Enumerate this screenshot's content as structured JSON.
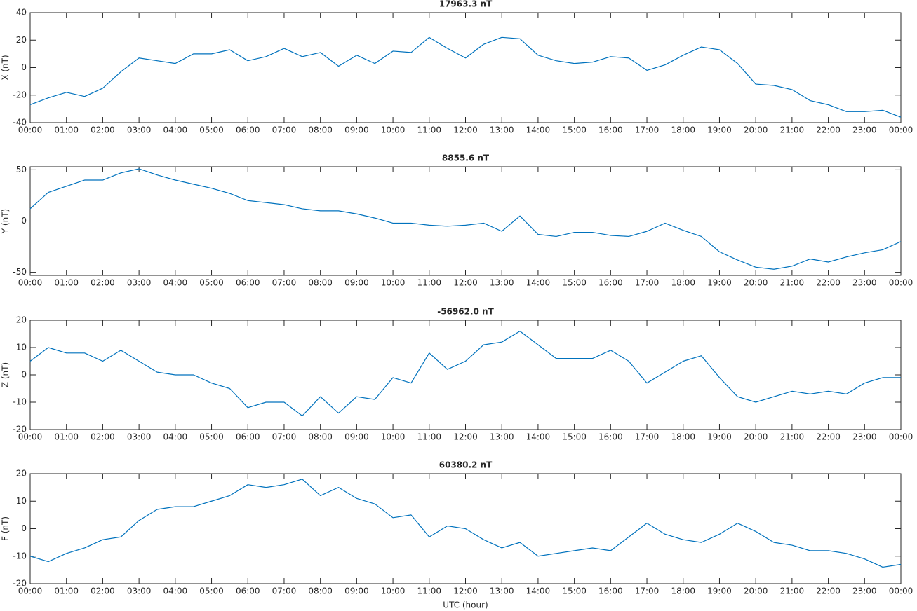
{
  "chart_data": [
    {
      "type": "line",
      "title": "17963.3 nT",
      "ylabel": "X (nT)",
      "color": "#0072bd",
      "x": [
        0,
        0.5,
        1,
        1.5,
        2,
        2.5,
        3,
        3.5,
        4,
        4.5,
        5,
        5.5,
        6,
        6.5,
        7,
        7.5,
        8,
        8.5,
        9,
        9.5,
        10,
        10.5,
        11,
        11.5,
        12,
        12.5,
        13,
        13.5,
        14,
        14.5,
        15,
        15.5,
        16,
        16.5,
        17,
        17.5,
        18,
        18.5,
        19,
        19.5,
        20,
        20.5,
        21,
        21.5,
        22,
        22.5,
        23,
        23.5,
        24
      ],
      "values": [
        -27,
        -22,
        -18,
        -21,
        -15,
        -3,
        7,
        5,
        3,
        10,
        10,
        13,
        5,
        8,
        14,
        8,
        11,
        1,
        9,
        3,
        12,
        11,
        22,
        14,
        7,
        17,
        22,
        21,
        9,
        5,
        3,
        4,
        8,
        7,
        -2,
        2,
        9,
        15,
        13,
        3,
        -12,
        -13,
        -16,
        -24,
        -27,
        -32,
        -32,
        -31,
        -36
      ],
      "xlim": [
        0,
        24
      ],
      "ylim": [
        -40,
        40
      ],
      "yticks": [
        -40,
        -20,
        0,
        20,
        40
      ],
      "xticks": [
        {
          "value": 0,
          "label": "00:00"
        },
        {
          "value": 1,
          "label": "01:00"
        },
        {
          "value": 2,
          "label": "02:00"
        },
        {
          "value": 3,
          "label": "03:00"
        },
        {
          "value": 4,
          "label": "04:00"
        },
        {
          "value": 5,
          "label": "05:00"
        },
        {
          "value": 6,
          "label": "06:00"
        },
        {
          "value": 7,
          "label": "07:00"
        },
        {
          "value": 8,
          "label": "08:00"
        },
        {
          "value": 9,
          "label": "09:00"
        },
        {
          "value": 10,
          "label": "10:00"
        },
        {
          "value": 11,
          "label": "11:00"
        },
        {
          "value": 12,
          "label": "12:00"
        },
        {
          "value": 13,
          "label": "13:00"
        },
        {
          "value": 14,
          "label": "14:00"
        },
        {
          "value": 15,
          "label": "15:00"
        },
        {
          "value": 16,
          "label": "16:00"
        },
        {
          "value": 17,
          "label": "17:00"
        },
        {
          "value": 18,
          "label": "18:00"
        },
        {
          "value": 19,
          "label": "19:00"
        },
        {
          "value": 20,
          "label": "20:00"
        },
        {
          "value": 21,
          "label": "21:00"
        },
        {
          "value": 22,
          "label": "22:00"
        },
        {
          "value": 23,
          "label": "23:00"
        },
        {
          "value": 24,
          "label": "00:00"
        }
      ]
    },
    {
      "type": "line",
      "title": "8855.6 nT",
      "ylabel": "Y (nT)",
      "color": "#0072bd",
      "x": [
        0,
        0.5,
        1,
        1.5,
        2,
        2.5,
        3,
        3.5,
        4,
        4.5,
        5,
        5.5,
        6,
        6.5,
        7,
        7.5,
        8,
        8.5,
        9,
        9.5,
        10,
        10.5,
        11,
        11.5,
        12,
        12.5,
        13,
        13.5,
        14,
        14.5,
        15,
        15.5,
        16,
        16.5,
        17,
        17.5,
        18,
        18.5,
        19,
        19.5,
        20,
        20.5,
        21,
        21.5,
        22,
        22.5,
        23,
        23.5,
        24
      ],
      "values": [
        12,
        28,
        34,
        40,
        40,
        47,
        51,
        45,
        40,
        36,
        32,
        27,
        20,
        18,
        16,
        12,
        10,
        10,
        7,
        3,
        -2,
        -2,
        -4,
        -5,
        -4,
        -2,
        -10,
        5,
        -13,
        -15,
        -11,
        -11,
        -14,
        -15,
        -10,
        -2,
        -9,
        -15,
        -30,
        -38,
        -45,
        -47,
        -44,
        -37,
        -40,
        -35,
        -31,
        -28,
        -20
      ],
      "xlim": [
        0,
        24
      ],
      "ylim": [
        -53,
        53
      ],
      "yticks": [
        -50,
        0,
        50
      ],
      "xticks": [
        {
          "value": 0,
          "label": "00:00"
        },
        {
          "value": 1,
          "label": "01:00"
        },
        {
          "value": 2,
          "label": "02:00"
        },
        {
          "value": 3,
          "label": "03:00"
        },
        {
          "value": 4,
          "label": "04:00"
        },
        {
          "value": 5,
          "label": "05:00"
        },
        {
          "value": 6,
          "label": "06:00"
        },
        {
          "value": 7,
          "label": "07:00"
        },
        {
          "value": 8,
          "label": "08:00"
        },
        {
          "value": 9,
          "label": "09:00"
        },
        {
          "value": 10,
          "label": "10:00"
        },
        {
          "value": 11,
          "label": "11:00"
        },
        {
          "value": 12,
          "label": "12:00"
        },
        {
          "value": 13,
          "label": "13:00"
        },
        {
          "value": 14,
          "label": "14:00"
        },
        {
          "value": 15,
          "label": "15:00"
        },
        {
          "value": 16,
          "label": "16:00"
        },
        {
          "value": 17,
          "label": "17:00"
        },
        {
          "value": 18,
          "label": "18:00"
        },
        {
          "value": 19,
          "label": "19:00"
        },
        {
          "value": 20,
          "label": "20:00"
        },
        {
          "value": 21,
          "label": "21:00"
        },
        {
          "value": 22,
          "label": "22:00"
        },
        {
          "value": 23,
          "label": "23:00"
        },
        {
          "value": 24,
          "label": "00:00"
        }
      ]
    },
    {
      "type": "line",
      "title": "-56962.0 nT",
      "ylabel": "Z (nT)",
      "color": "#0072bd",
      "x": [
        0,
        0.5,
        1,
        1.5,
        2,
        2.5,
        3,
        3.5,
        4,
        4.5,
        5,
        5.5,
        6,
        6.5,
        7,
        7.5,
        8,
        8.5,
        9,
        9.5,
        10,
        10.5,
        11,
        11.5,
        12,
        12.5,
        13,
        13.5,
        14,
        14.5,
        15,
        15.5,
        16,
        16.5,
        17,
        17.5,
        18,
        18.5,
        19,
        19.5,
        20,
        20.5,
        21,
        21.5,
        22,
        22.5,
        23,
        23.5,
        24
      ],
      "values": [
        5,
        10,
        8,
        8,
        5,
        9,
        5,
        1,
        0,
        0,
        -3,
        -5,
        -12,
        -10,
        -10,
        -15,
        -8,
        -14,
        -8,
        -9,
        -1,
        -3,
        8,
        2,
        5,
        11,
        12,
        16,
        11,
        6,
        6,
        6,
        9,
        5,
        -3,
        1,
        5,
        7,
        -1,
        -8,
        -10,
        -8,
        -6,
        -7,
        -6,
        -7,
        -3,
        -1,
        -1
      ],
      "xlim": [
        0,
        24
      ],
      "ylim": [
        -20,
        20
      ],
      "yticks": [
        -20,
        -10,
        0,
        10,
        20
      ],
      "xticks": [
        {
          "value": 0,
          "label": "00:00"
        },
        {
          "value": 1,
          "label": "01:00"
        },
        {
          "value": 2,
          "label": "02:00"
        },
        {
          "value": 3,
          "label": "03:00"
        },
        {
          "value": 4,
          "label": "04:00"
        },
        {
          "value": 5,
          "label": "05:00"
        },
        {
          "value": 6,
          "label": "06:00"
        },
        {
          "value": 7,
          "label": "07:00"
        },
        {
          "value": 8,
          "label": "08:00"
        },
        {
          "value": 9,
          "label": "09:00"
        },
        {
          "value": 10,
          "label": "10:00"
        },
        {
          "value": 11,
          "label": "11:00"
        },
        {
          "value": 12,
          "label": "12:00"
        },
        {
          "value": 13,
          "label": "13:00"
        },
        {
          "value": 14,
          "label": "14:00"
        },
        {
          "value": 15,
          "label": "15:00"
        },
        {
          "value": 16,
          "label": "16:00"
        },
        {
          "value": 17,
          "label": "17:00"
        },
        {
          "value": 18,
          "label": "18:00"
        },
        {
          "value": 19,
          "label": "19:00"
        },
        {
          "value": 20,
          "label": "20:00"
        },
        {
          "value": 21,
          "label": "21:00"
        },
        {
          "value": 22,
          "label": "22:00"
        },
        {
          "value": 23,
          "label": "23:00"
        },
        {
          "value": 24,
          "label": "00:00"
        }
      ]
    },
    {
      "type": "line",
      "title": "60380.2 nT",
      "ylabel": "F (nT)",
      "xlabel": "UTC (hour)",
      "color": "#0072bd",
      "x": [
        0,
        0.5,
        1,
        1.5,
        2,
        2.5,
        3,
        3.5,
        4,
        4.5,
        5,
        5.5,
        6,
        6.5,
        7,
        7.5,
        8,
        8.5,
        9,
        9.5,
        10,
        10.5,
        11,
        11.5,
        12,
        12.5,
        13,
        13.5,
        14,
        14.5,
        15,
        15.5,
        16,
        16.5,
        17,
        17.5,
        18,
        18.5,
        19,
        19.5,
        20,
        20.5,
        21,
        21.5,
        22,
        22.5,
        23,
        23.5,
        24
      ],
      "values": [
        -10,
        -12,
        -9,
        -7,
        -4,
        -3,
        3,
        7,
        8,
        8,
        10,
        12,
        16,
        15,
        16,
        18,
        12,
        15,
        11,
        9,
        4,
        5,
        -3,
        1,
        0,
        -4,
        -7,
        -5,
        -10,
        -9,
        -8,
        -7,
        -8,
        -3,
        2,
        -2,
        -4,
        -5,
        -2,
        2,
        -1,
        -5,
        -6,
        -8,
        -8,
        -9,
        -11,
        -14,
        -13
      ],
      "xlim": [
        0,
        24
      ],
      "ylim": [
        -20,
        20
      ],
      "yticks": [
        -20,
        -10,
        0,
        10,
        20
      ],
      "xticks": [
        {
          "value": 0,
          "label": "00:00"
        },
        {
          "value": 1,
          "label": "01:00"
        },
        {
          "value": 2,
          "label": "02:00"
        },
        {
          "value": 3,
          "label": "03:00"
        },
        {
          "value": 4,
          "label": "04:00"
        },
        {
          "value": 5,
          "label": "05:00"
        },
        {
          "value": 6,
          "label": "06:00"
        },
        {
          "value": 7,
          "label": "07:00"
        },
        {
          "value": 8,
          "label": "08:00"
        },
        {
          "value": 9,
          "label": "09:00"
        },
        {
          "value": 10,
          "label": "10:00"
        },
        {
          "value": 11,
          "label": "11:00"
        },
        {
          "value": 12,
          "label": "12:00"
        },
        {
          "value": 13,
          "label": "13:00"
        },
        {
          "value": 14,
          "label": "14:00"
        },
        {
          "value": 15,
          "label": "15:00"
        },
        {
          "value": 16,
          "label": "16:00"
        },
        {
          "value": 17,
          "label": "17:00"
        },
        {
          "value": 18,
          "label": "18:00"
        },
        {
          "value": 19,
          "label": "19:00"
        },
        {
          "value": 20,
          "label": "20:00"
        },
        {
          "value": 21,
          "label": "21:00"
        },
        {
          "value": 22,
          "label": "22:00"
        },
        {
          "value": 23,
          "label": "23:00"
        },
        {
          "value": 24,
          "label": "00:00"
        }
      ]
    }
  ]
}
